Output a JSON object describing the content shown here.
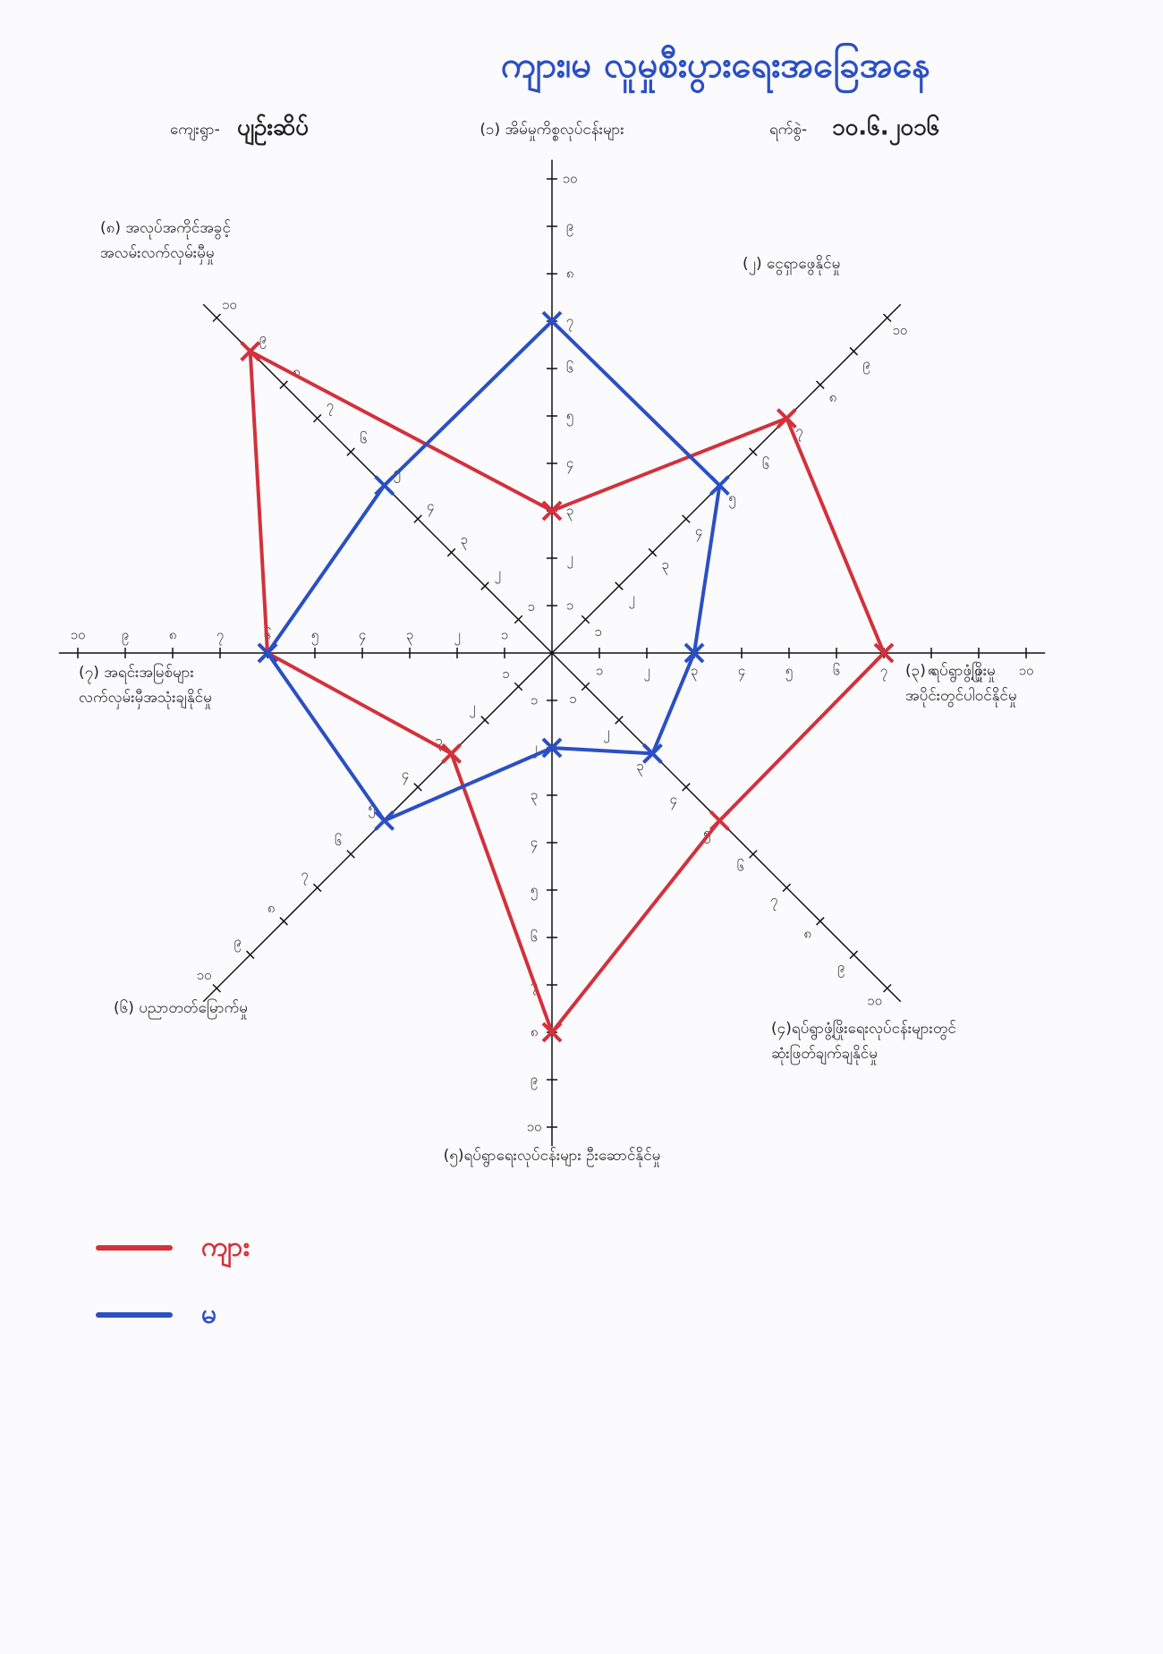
{
  "chart_data": {
    "type": "radar",
    "title": "ကျား၊မ လူမှုစီးပွားရေးအခြေအနေ",
    "village_label": "ကျေးရွာ-",
    "village": "ပျဉ်းဆိပ်",
    "date_label": "ရက်စွဲ-",
    "date": "၁၀.၆.၂၀၁၆",
    "categories": [
      "(၁) အိမ်မှုကိစ္စလုပ်ငန်းများ",
      "(၂) ငွေရှာဖွေနိုင်မှု",
      "(၃) ရပ်ရွာဖွံ့ဖြိုးမှု\nအပိုင်းတွင်ပါဝင်နိုင်မှု",
      "(၄)ရပ်ရွာဖွံ့ဖြိုးရေးလုပ်ငန်းများတွင်\nဆုံးဖြတ်ချက်ချနိုင်မှု",
      "(၅)ရပ်ရွာရေးလုပ်ငန်းများ ဦးဆောင်နိုင်မှု",
      "(၆) ပညာတတ်မြောက်မှု",
      "(၇) အရင်းအမြစ်များ\nလက်လှမ်းမှီအသုံးချနိုင်မှု",
      "(၈) အလုပ်အကိုင်အခွင့်\nအလမ်းလက်လှမ်းမှီမှု"
    ],
    "series": [
      {
        "name": "ကျား",
        "color": "#d3313c",
        "values": [
          3,
          7,
          7,
          5,
          8,
          3,
          6,
          9
        ]
      },
      {
        "name": "မ",
        "color": "#2b4fc4",
        "values": [
          7,
          5,
          3,
          3,
          2,
          5,
          6,
          5
        ]
      }
    ],
    "rlim": [
      0,
      10
    ],
    "rticks": [
      {
        "value": 1,
        "label": "၁"
      },
      {
        "value": 2,
        "label": "၂"
      },
      {
        "value": 3,
        "label": "၃"
      },
      {
        "value": 4,
        "label": "၄"
      },
      {
        "value": 5,
        "label": "၅"
      },
      {
        "value": 6,
        "label": "၆"
      },
      {
        "value": 7,
        "label": "၇"
      },
      {
        "value": 8,
        "label": "၈"
      },
      {
        "value": 9,
        "label": "၉"
      },
      {
        "value": 10,
        "label": "၁၀"
      }
    ]
  }
}
